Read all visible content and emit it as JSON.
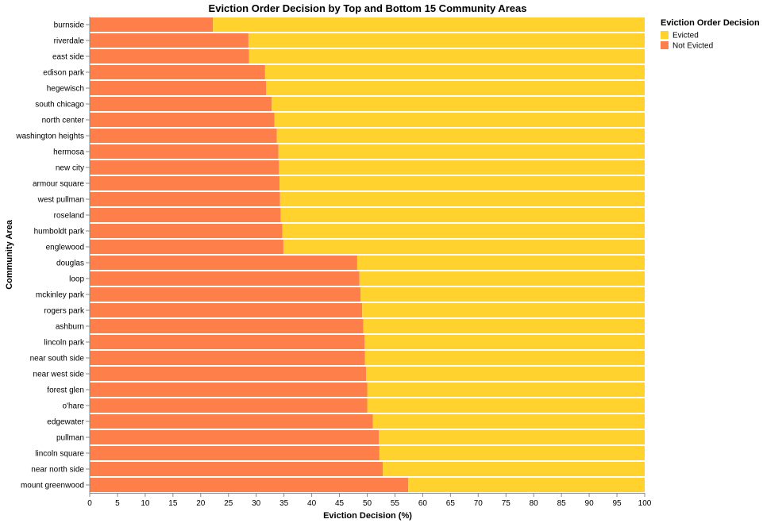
{
  "chart_data": {
    "type": "bar",
    "orientation": "horizontal",
    "stacked": true,
    "title": "Eviction Order Decision by Top and Bottom 15 Community Areas",
    "xlabel": "Eviction Decision (%)",
    "ylabel": "Community Area",
    "xlim": [
      0,
      100
    ],
    "x_ticks": [
      0,
      5,
      10,
      15,
      20,
      25,
      30,
      35,
      40,
      45,
      50,
      55,
      60,
      65,
      70,
      75,
      80,
      85,
      90,
      95,
      100
    ],
    "grid": false,
    "legend_position": "top-right",
    "legend_title": "Eviction Order Decision",
    "categories": [
      "burnside",
      "riverdale",
      "east side",
      "edison park",
      "hegewisch",
      "south chicago",
      "north center",
      "washington heights",
      "hermosa",
      "new city",
      "armour square",
      "west pullman",
      "roseland",
      "humboldt park",
      "englewood",
      "douglas",
      "loop",
      "mckinley park",
      "rogers park",
      "ashburn",
      "lincoln park",
      "near south side",
      "near west side",
      "forest glen",
      "o'hare",
      "edgewater",
      "pullman",
      "lincoln square",
      "near north side",
      "mount greenwood"
    ],
    "series": [
      {
        "name": "Not Evicted",
        "color": "#ff7f4a",
        "values": [
          22.2,
          28.6,
          28.7,
          31.6,
          31.8,
          32.8,
          33.3,
          33.7,
          34.0,
          34.1,
          34.2,
          34.3,
          34.4,
          34.7,
          34.9,
          48.2,
          48.6,
          48.8,
          49.1,
          49.3,
          49.5,
          49.6,
          49.8,
          50.0,
          50.0,
          51.0,
          52.1,
          52.2,
          52.8,
          57.4
        ]
      },
      {
        "name": "Evicted",
        "color": "#ffd22e",
        "values": [
          77.8,
          71.4,
          71.3,
          68.4,
          68.2,
          67.2,
          66.7,
          66.3,
          66.0,
          65.9,
          65.8,
          65.7,
          65.6,
          65.3,
          65.1,
          51.8,
          51.4,
          51.2,
          50.9,
          50.7,
          50.5,
          50.4,
          50.2,
          50.0,
          50.0,
          49.0,
          47.9,
          47.8,
          47.2,
          42.6
        ]
      }
    ],
    "legend_order": [
      "Evicted",
      "Not Evicted"
    ]
  }
}
